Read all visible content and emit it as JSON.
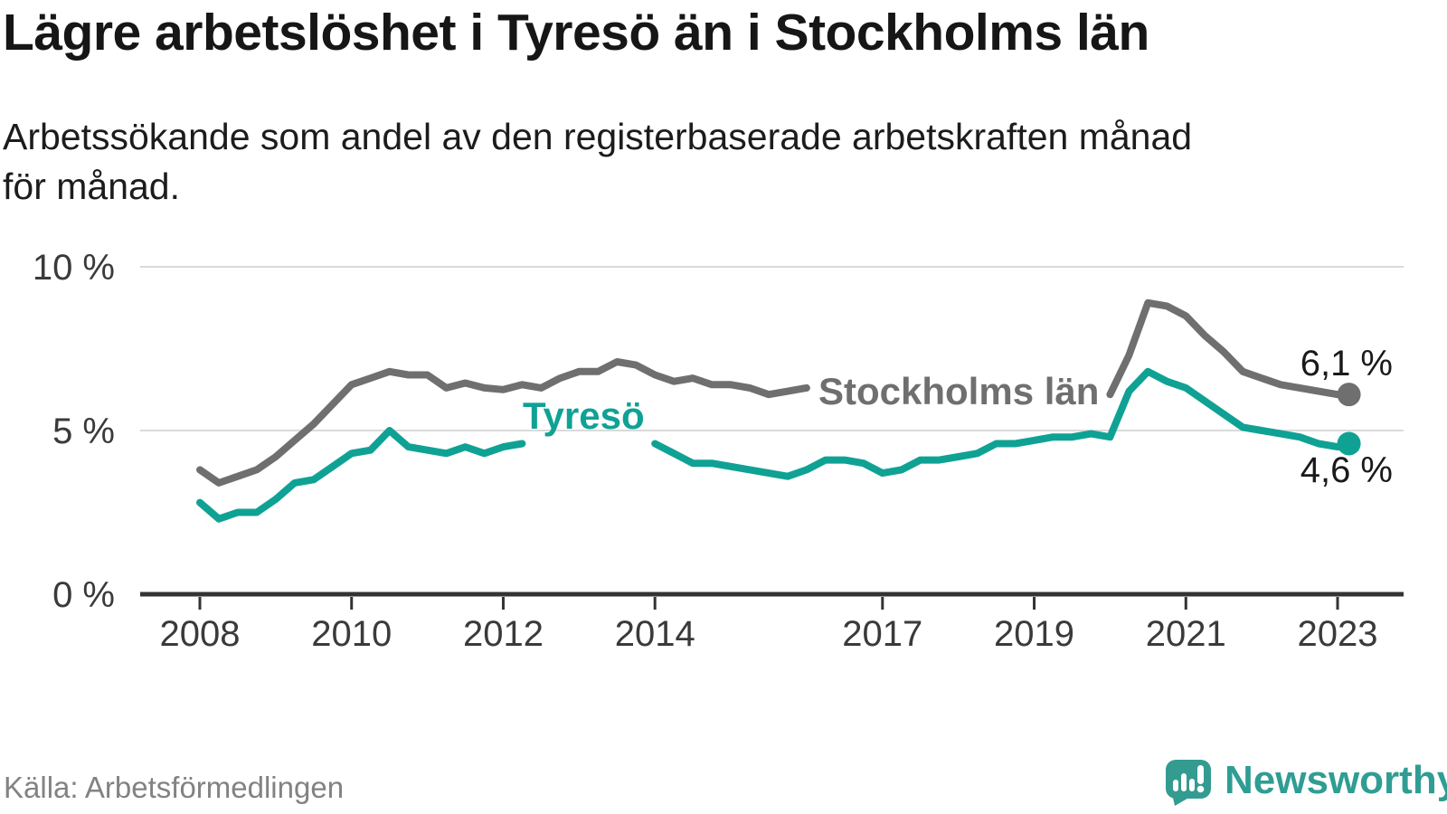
{
  "title": "Lägre arbetslöshet i Tyresö än i Stockholms län",
  "subtitle_lines": [
    "Arbetssökande som andel av den registerbaserade arbetskraften månad",
    "för månad."
  ],
  "source": "Källa: Arbetsförmedlingen",
  "logo": {
    "brand": "Newsworthy"
  },
  "colors": {
    "background": "#ffffff",
    "tyreso": "#0fa294",
    "stockholm": "#6f6f6f",
    "grid": "#dadada",
    "axis": "#333333",
    "text": "#1a1a1a",
    "muted": "#828282",
    "logo": "#349b91"
  },
  "y_axis": {
    "unit": "%",
    "ticks": [
      {
        "value": 10,
        "label": "10 %"
      },
      {
        "value": 5,
        "label": "5 %"
      },
      {
        "value": 0,
        "label": "0 %"
      }
    ]
  },
  "x_axis": {
    "ticks": [
      {
        "value": 2008,
        "label": "2008"
      },
      {
        "value": 2010,
        "label": "2010"
      },
      {
        "value": 2012,
        "label": "2012"
      },
      {
        "value": 2014,
        "label": "2014"
      },
      {
        "value": 2017,
        "label": "2017"
      },
      {
        "value": 2019,
        "label": "2019"
      },
      {
        "value": 2021,
        "label": "2021"
      },
      {
        "value": 2023,
        "label": "2023"
      }
    ]
  },
  "chart_data": {
    "type": "line",
    "unit": "%",
    "xlim": [
      2007.2,
      2023.6
    ],
    "ylim": [
      0,
      10
    ],
    "grid": "horizontal",
    "x": [
      2008.0,
      2008.25,
      2008.5,
      2008.75,
      2009.0,
      2009.25,
      2009.5,
      2009.75,
      2010.0,
      2010.25,
      2010.5,
      2010.75,
      2011.0,
      2011.25,
      2011.5,
      2011.75,
      2012.0,
      2012.25,
      2012.5,
      2012.75,
      2013.0,
      2013.25,
      2013.5,
      2013.75,
      2014.0,
      2014.25,
      2014.5,
      2014.75,
      2015.0,
      2015.25,
      2015.5,
      2015.75,
      2016.0,
      2016.25,
      2016.5,
      2016.75,
      2017.0,
      2017.25,
      2017.5,
      2017.75,
      2018.0,
      2018.25,
      2018.5,
      2018.75,
      2019.0,
      2019.25,
      2019.5,
      2019.75,
      2020.0,
      2020.25,
      2020.5,
      2020.75,
      2021.0,
      2021.25,
      2021.5,
      2021.75,
      2022.0,
      2022.25,
      2022.5,
      2022.75,
      2023.0,
      2023.15
    ],
    "series": [
      {
        "name": "Stockholms län",
        "color": "#6f6f6f",
        "end_label": "6,1 %",
        "end_value": 6.1,
        "label_gap": [
          2016.05,
          2019.98
        ],
        "values": [
          3.8,
          3.4,
          3.6,
          3.8,
          4.2,
          4.7,
          5.2,
          5.8,
          6.4,
          6.6,
          6.8,
          6.7,
          6.7,
          6.3,
          6.45,
          6.3,
          6.25,
          6.4,
          6.3,
          6.6,
          6.8,
          6.8,
          7.1,
          7.0,
          6.7,
          6.5,
          6.6,
          6.4,
          6.4,
          6.3,
          6.1,
          6.2,
          6.3,
          6.3,
          6.3,
          6.2,
          6.2,
          6.1,
          6.1,
          6.0,
          6.0,
          6.0,
          6.0,
          6.0,
          6.0,
          6.0,
          6.1,
          6.1,
          6.1,
          7.3,
          8.9,
          8.8,
          8.5,
          7.9,
          7.4,
          6.8,
          6.6,
          6.4,
          6.3,
          6.2,
          6.1,
          6.1
        ]
      },
      {
        "name": "Tyresö",
        "color": "#0fa294",
        "end_label": "4,6 %",
        "end_value": 4.6,
        "label_gap": [
          2012.28,
          2013.98
        ],
        "values": [
          2.8,
          2.3,
          2.5,
          2.5,
          2.9,
          3.4,
          3.5,
          3.9,
          4.3,
          4.4,
          5.0,
          4.5,
          4.4,
          4.3,
          4.5,
          4.3,
          4.5,
          4.6,
          4.6,
          4.7,
          4.8,
          4.9,
          4.9,
          4.9,
          4.6,
          4.3,
          4.0,
          4.0,
          3.9,
          3.8,
          3.7,
          3.6,
          3.8,
          4.1,
          4.1,
          4.0,
          3.7,
          3.8,
          4.1,
          4.1,
          4.2,
          4.3,
          4.6,
          4.6,
          4.7,
          4.8,
          4.8,
          4.9,
          4.8,
          6.2,
          6.8,
          6.5,
          6.3,
          5.9,
          5.5,
          5.1,
          5.0,
          4.9,
          4.8,
          4.6,
          4.5,
          4.6
        ]
      }
    ],
    "title": "Lägre arbetslöshet i Tyresö än i Stockholms län",
    "xlabel": "",
    "ylabel": ""
  }
}
